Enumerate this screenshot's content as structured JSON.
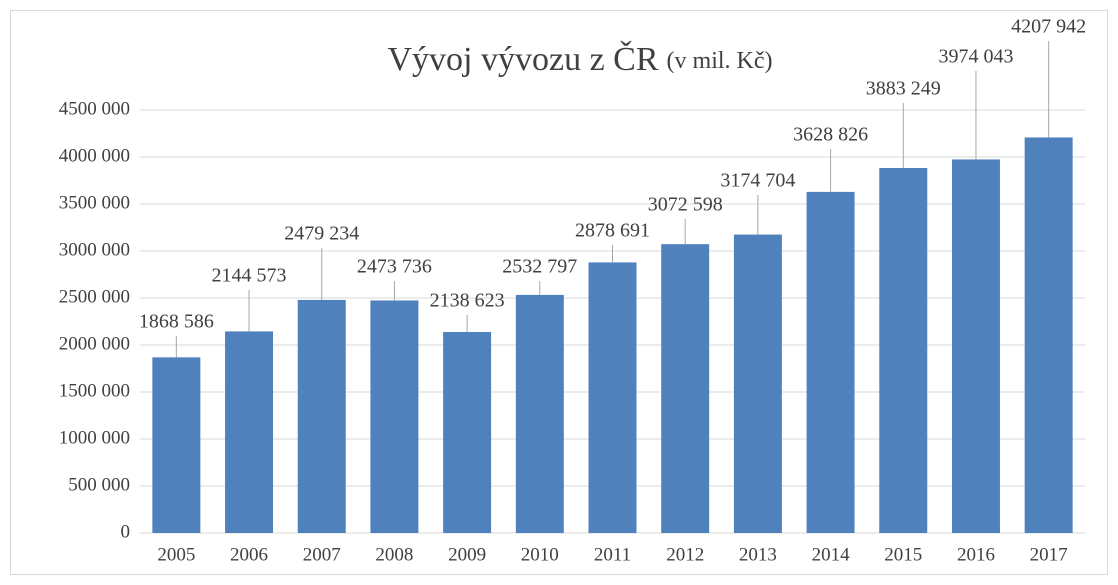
{
  "chart_data": {
    "type": "bar",
    "title": "Vývoj vývozu z ČR",
    "subtitle": "(v mil. Kč)",
    "categories": [
      "2005",
      "2006",
      "2007",
      "2008",
      "2009",
      "2010",
      "2011",
      "2012",
      "2013",
      "2014",
      "2015",
      "2016",
      "2017"
    ],
    "values": [
      1868586,
      2144573,
      2479234,
      2473736,
      2138623,
      2532797,
      2878691,
      3072598,
      3174704,
      3628826,
      3883249,
      3974043,
      4207942
    ],
    "value_labels": [
      "1868 586",
      "2144 573",
      "2479 234",
      "2473 736",
      "2138 623",
      "2532 797",
      "2878 691",
      "3072 598",
      "3174 704",
      "3628 826",
      "3883 249",
      "3974 043",
      "4207 942"
    ],
    "color": "#4f81bd",
    "ylim": [
      0,
      4500000
    ],
    "yticks": [
      0,
      {
        "value": 500000,
        "label": "500 000"
      },
      {
        "value": 1000000,
        "label": "1000 000"
      },
      {
        "value": 1500000,
        "label": "1500 000"
      },
      {
        "value": 2000000,
        "label": "2000 000"
      },
      {
        "value": 2500000,
        "label": "2500 000"
      },
      {
        "value": 3000000,
        "label": "3000 000"
      },
      {
        "value": 3500000,
        "label": "3500 000"
      },
      {
        "value": 4000000,
        "label": "4000 000"
      },
      {
        "value": 4500000,
        "label": "4500 000"
      }
    ],
    "grid": true
  }
}
